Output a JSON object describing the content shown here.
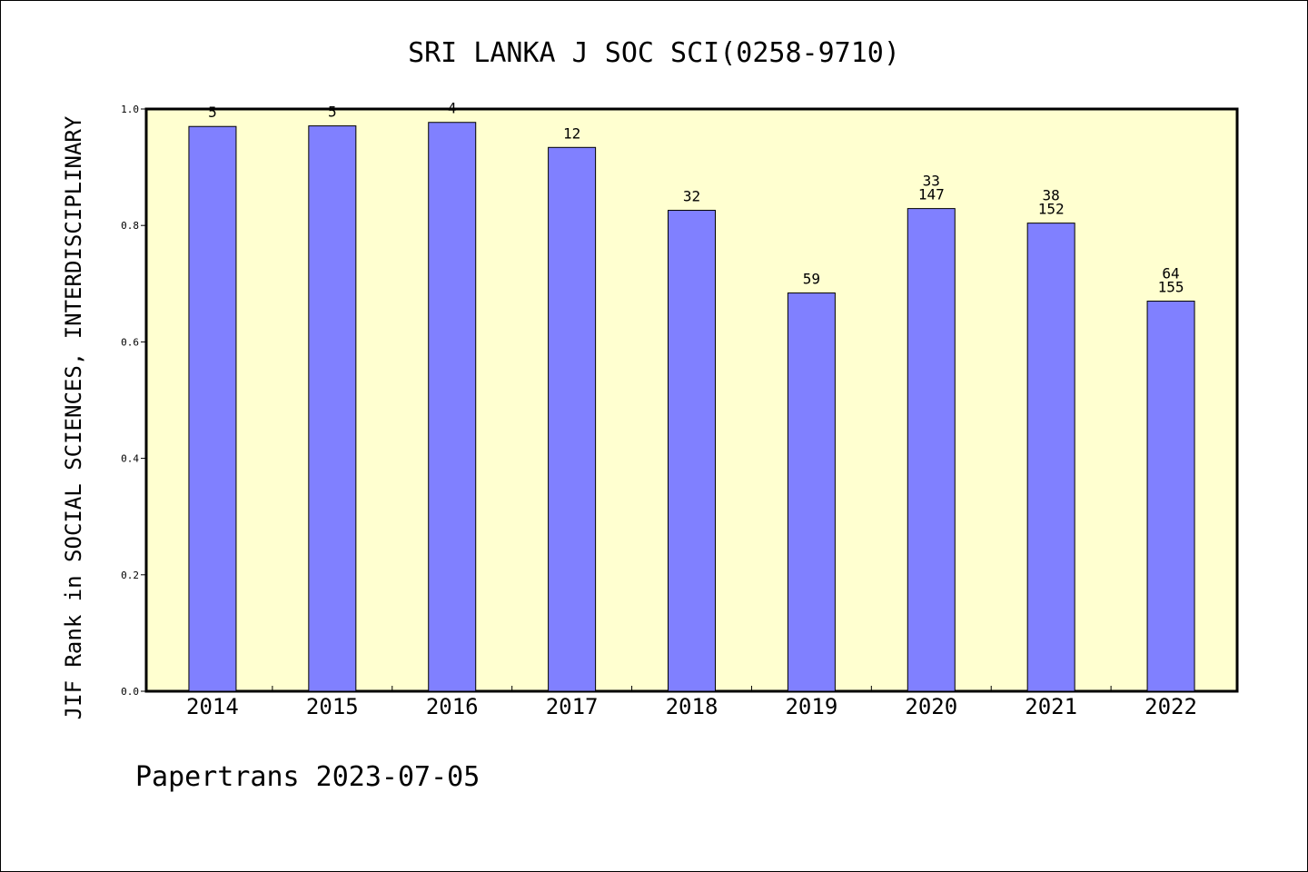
{
  "chart_data": {
    "type": "bar",
    "title": "SRI LANKA J SOC SCI(0258-9710)",
    "ylabel": "JIF Rank in SOCIAL SCIENCES, INTERDISCIPLINARY",
    "xlabel": "",
    "categories": [
      "2014",
      "2015",
      "2016",
      "2017",
      "2018",
      "2019",
      "2020",
      "2021",
      "2022"
    ],
    "values": [
      0.97,
      0.971,
      0.977,
      0.934,
      0.826,
      0.684,
      0.829,
      0.804,
      0.67
    ],
    "bar_labels": [
      [
        "5"
      ],
      [
        "5"
      ],
      [
        "4"
      ],
      [
        "12"
      ],
      [
        "32"
      ],
      [
        "59"
      ],
      [
        "33",
        "147"
      ],
      [
        "38",
        "152"
      ],
      [
        "64",
        "155"
      ]
    ],
    "ylim": [
      0,
      1.0
    ],
    "yticks": [
      "0.0",
      "0.2",
      "0.4",
      "0.6",
      "0.8",
      "1.0"
    ],
    "ytick_values": [
      0,
      0.2,
      0.4,
      0.6,
      0.8,
      1.0
    ],
    "grid": false,
    "colors": {
      "plot_background": "#ffffd0",
      "bar_fill": "#8080ff",
      "bar_stroke": "#000000"
    }
  },
  "footer": {
    "credit": "Papertrans 2023-07-05"
  }
}
